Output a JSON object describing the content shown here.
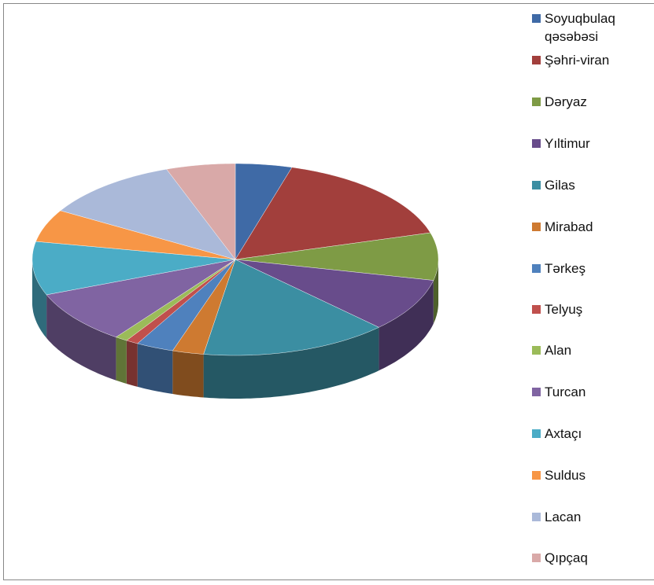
{
  "chart_data": {
    "type": "pie3d",
    "categories": [
      "Soyuqbulaq qəsəbəsi",
      "Şəhri-viran",
      "Dəryaz",
      "Yıltimur",
      "Gilas",
      "Mirabad",
      "Tərkeş",
      "Telyuş",
      "Alan",
      "Turcan",
      "Axtaçı",
      "Suldus",
      "Lacan",
      "Qıpçaq"
    ],
    "values": [
      4.5,
      16,
      8,
      9,
      15,
      2.5,
      3,
      1,
      1,
      9,
      9,
      5.5,
      11,
      5.5
    ],
    "colors": [
      "#3F6AA6",
      "#A23F3C",
      "#7E9B45",
      "#684C8B",
      "#3B8EA2",
      "#CE7A31",
      "#4F81BD",
      "#C0504D",
      "#9BBB59",
      "#8064A2",
      "#4BACC6",
      "#F79646",
      "#AAB9D9",
      "#D9A9A8"
    ],
    "legend": "right"
  }
}
